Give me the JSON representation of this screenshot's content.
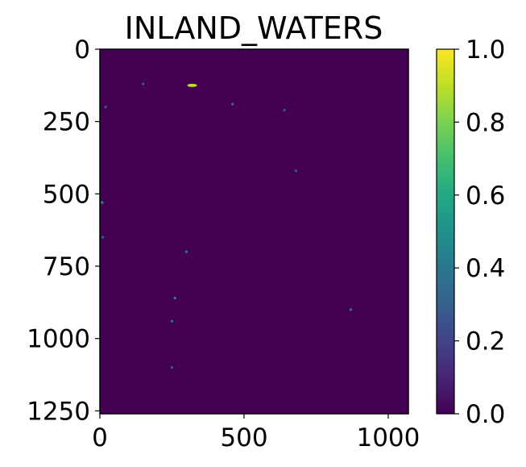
{
  "chart_data": {
    "type": "heatmap",
    "title": "INLAND_WATERS",
    "xlabel": "",
    "ylabel": "",
    "colormap": "viridis",
    "background_value": 0.0,
    "xlim": [
      0,
      1070
    ],
    "ylim": [
      1260,
      0
    ],
    "xticks": [
      {
        "value": 0,
        "label": "0"
      },
      {
        "value": 500,
        "label": "500"
      },
      {
        "value": 1000,
        "label": "1000"
      }
    ],
    "yticks": [
      {
        "value": 0,
        "label": "0"
      },
      {
        "value": 250,
        "label": "250"
      },
      {
        "value": 500,
        "label": "500"
      },
      {
        "value": 750,
        "label": "750"
      },
      {
        "value": 1000,
        "label": "1000"
      },
      {
        "value": 1250,
        "label": "1250"
      }
    ],
    "colorbar": {
      "range": [
        0.0,
        1.0
      ],
      "ticks": [
        {
          "value": 0.0,
          "label": "0.0"
        },
        {
          "value": 0.2,
          "label": "0.2"
        },
        {
          "value": 0.4,
          "label": "0.4"
        },
        {
          "value": 0.6,
          "label": "0.6"
        },
        {
          "value": 0.8,
          "label": "0.8"
        },
        {
          "value": 1.0,
          "label": "1.0"
        }
      ]
    },
    "water_features": [
      {
        "x": 320,
        "y": 125,
        "value": 0.85
      },
      {
        "x": 150,
        "y": 120,
        "value": 0.3
      },
      {
        "x": 20,
        "y": 200,
        "value": 0.25
      },
      {
        "x": 460,
        "y": 190,
        "value": 0.35
      },
      {
        "x": 640,
        "y": 210,
        "value": 0.3
      },
      {
        "x": 680,
        "y": 420,
        "value": 0.3
      },
      {
        "x": 8,
        "y": 530,
        "value": 0.5
      },
      {
        "x": 10,
        "y": 650,
        "value": 0.3
      },
      {
        "x": 300,
        "y": 700,
        "value": 0.35
      },
      {
        "x": 260,
        "y": 860,
        "value": 0.45
      },
      {
        "x": 250,
        "y": 940,
        "value": 0.4
      },
      {
        "x": 870,
        "y": 900,
        "value": 0.35
      },
      {
        "x": 250,
        "y": 1100,
        "value": 0.3
      }
    ]
  }
}
